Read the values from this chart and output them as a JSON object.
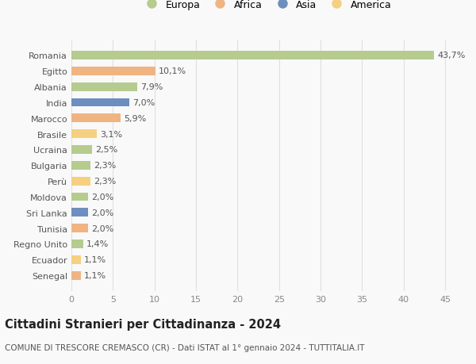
{
  "countries": [
    "Romania",
    "Egitto",
    "Albania",
    "India",
    "Marocco",
    "Brasile",
    "Ucraina",
    "Bulgaria",
    "Perù",
    "Moldova",
    "Sri Lanka",
    "Tunisia",
    "Regno Unito",
    "Ecuador",
    "Senegal"
  ],
  "values": [
    43.7,
    10.1,
    7.9,
    7.0,
    5.9,
    3.1,
    2.5,
    2.3,
    2.3,
    2.0,
    2.0,
    2.0,
    1.4,
    1.1,
    1.1
  ],
  "labels": [
    "43,7%",
    "10,1%",
    "7,9%",
    "7,0%",
    "5,9%",
    "3,1%",
    "2,5%",
    "2,3%",
    "2,3%",
    "2,0%",
    "2,0%",
    "2,0%",
    "1,4%",
    "1,1%",
    "1,1%"
  ],
  "continents": [
    "Europa",
    "Africa",
    "Europa",
    "Asia",
    "Africa",
    "America",
    "Europa",
    "Europa",
    "America",
    "Europa",
    "Asia",
    "Africa",
    "Europa",
    "America",
    "Africa"
  ],
  "colors": {
    "Europa": "#b5cc8e",
    "Africa": "#f0b482",
    "Asia": "#6d8fbf",
    "America": "#f5d080"
  },
  "legend_order": [
    "Europa",
    "Africa",
    "Asia",
    "America"
  ],
  "title": "Cittadini Stranieri per Cittadinanza - 2024",
  "subtitle": "COMUNE DI TRESCORE CREMASCO (CR) - Dati ISTAT al 1° gennaio 2024 - TUTTITALIA.IT",
  "xlim": [
    0,
    47
  ],
  "xticks": [
    0,
    5,
    10,
    15,
    20,
    25,
    30,
    35,
    40,
    45
  ],
  "bg_color": "#f9f9f9",
  "grid_color": "#e0e0e0",
  "bar_height": 0.55,
  "label_fontsize": 8,
  "tick_fontsize": 8,
  "ytick_fontsize": 8,
  "title_fontsize": 10.5,
  "subtitle_fontsize": 7.5,
  "legend_fontsize": 9
}
